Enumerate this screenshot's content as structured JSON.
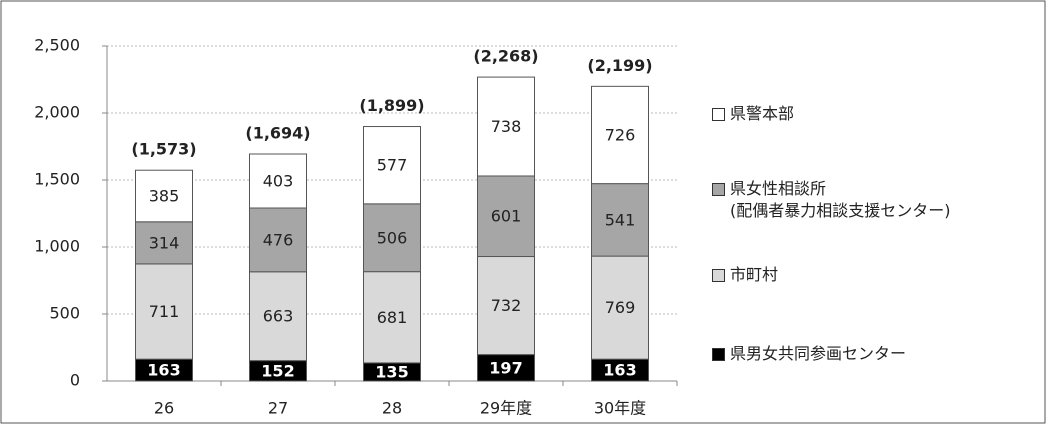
{
  "chart_data": {
    "type": "stacked_bar",
    "categories": [
      "26",
      "27",
      "28",
      "29年度",
      "30年度"
    ],
    "series": [
      {
        "name": "県男女共同参画センター",
        "color": "#000000",
        "values": [
          163,
          152,
          135,
          197,
          163
        ]
      },
      {
        "name": "市町村",
        "color": "#d9d9d9",
        "values": [
          711,
          663,
          681,
          732,
          769
        ]
      },
      {
        "name": "県女性相談所\n(配偶者暴力相談支援センター)",
        "color": "#a6a6a6",
        "values": [
          314,
          476,
          506,
          601,
          541
        ]
      },
      {
        "name": "県警本部",
        "color": "#ffffff",
        "values": [
          385,
          403,
          577,
          738,
          726
        ]
      }
    ],
    "totals": {
      "values": [
        1573,
        1694,
        1899,
        2268,
        2199
      ],
      "value_labels": [
        "(1,573)",
        "(1,694)",
        "(1,899)",
        "(2,268)",
        "(2,199)"
      ]
    },
    "ylim": [
      0,
      2500
    ],
    "yticks": [
      0,
      500,
      {
        "value": 1000,
        "label": "1,000"
      },
      {
        "value": 1500,
        "label": "1,500"
      },
      {
        "value": 2000,
        "label": "2,000"
      },
      {
        "value": 2500,
        "label": "2,500"
      }
    ],
    "grid": true
  }
}
